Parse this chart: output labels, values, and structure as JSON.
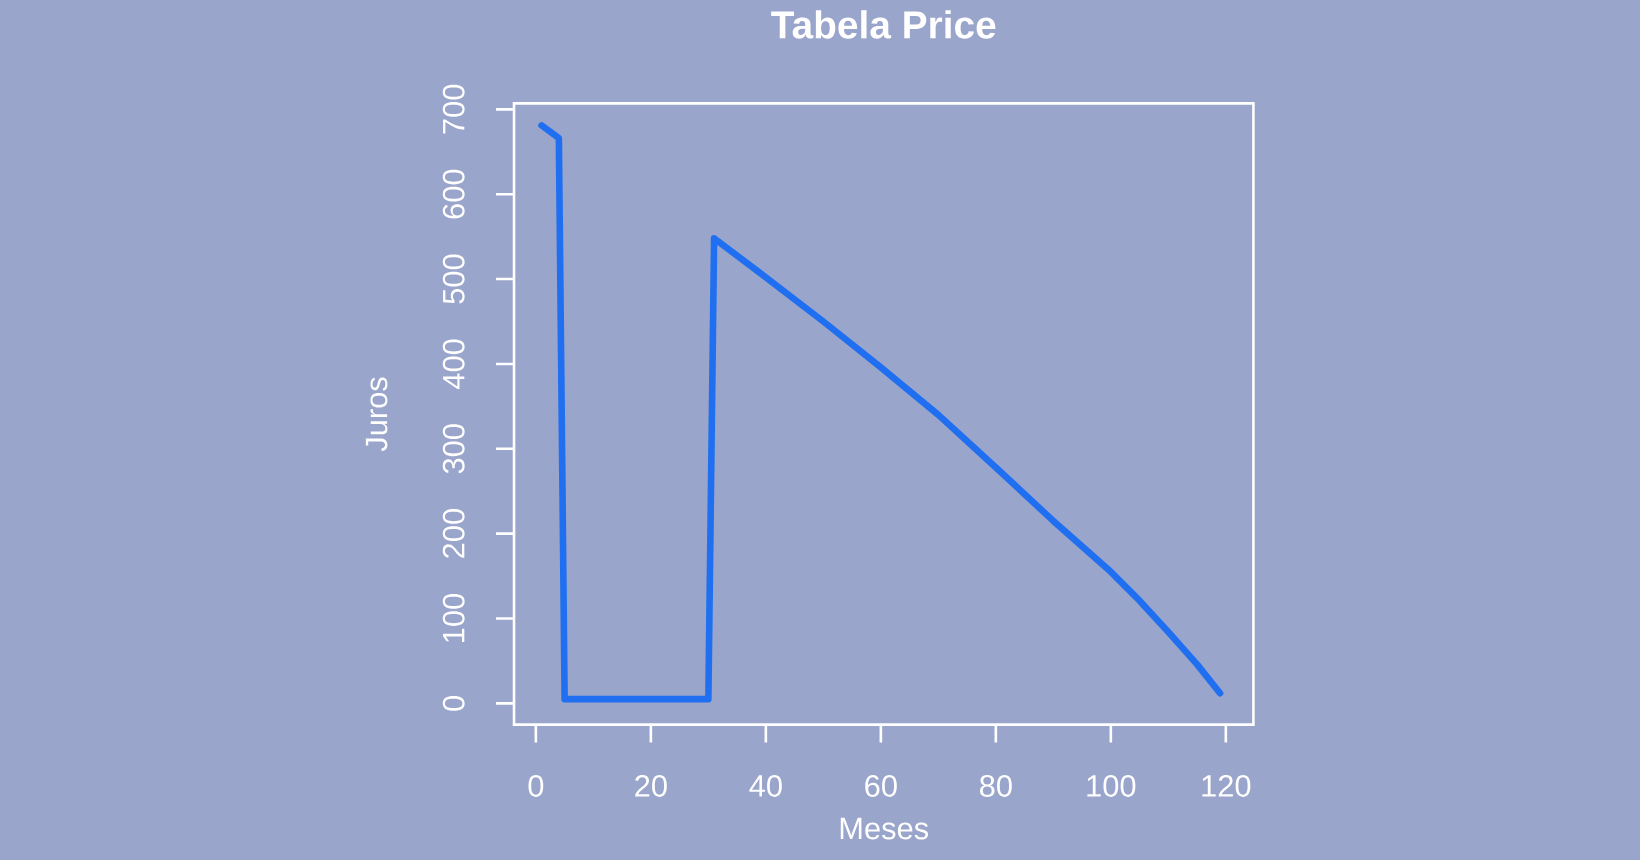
{
  "chart_data": {
    "type": "line",
    "title": "Tabela Price",
    "xlabel": "Meses",
    "ylabel": "Juros",
    "x": [
      1,
      4,
      5,
      30,
      31,
      40,
      50,
      60,
      70,
      80,
      90,
      100,
      105,
      110,
      115,
      119
    ],
    "series": [
      {
        "color": "#1f6ff0",
        "values": [
          681,
          666,
          5,
          5,
          548,
          502,
          450,
          396,
          340,
          278,
          215,
          155,
          121,
          84,
          46,
          12
        ]
      }
    ],
    "xlim": [
      -3.8,
      124.8
    ],
    "ylim": [
      -25,
      707
    ],
    "xticks": [
      0,
      20,
      40,
      60,
      80,
      100,
      120
    ],
    "yticks": [
      0,
      100,
      200,
      300,
      400,
      500,
      600,
      700
    ],
    "marker": "none",
    "line_style": "solid"
  }
}
